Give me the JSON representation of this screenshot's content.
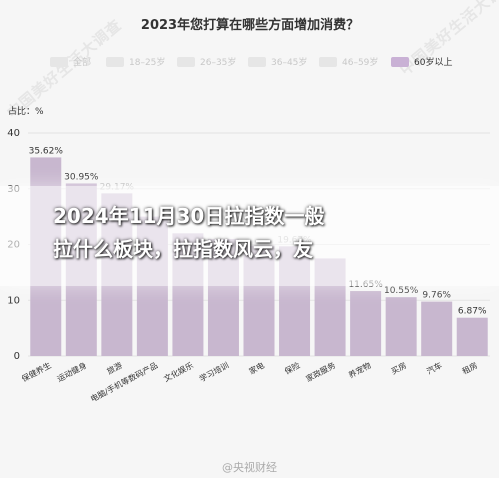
{
  "watermark": "中国美好生活大调查",
  "chart_data": {
    "type": "bar",
    "title": "2023年您打算在哪些方面增加消费？",
    "legend": [
      "全部",
      "18–25岁",
      "26–35岁",
      "36–45岁",
      "46–59岁",
      "60岁以上"
    ],
    "active_legend": "60岁以上",
    "y_unit_label": "占比：%",
    "ylim": [
      0,
      40
    ],
    "yticks": [
      0,
      10,
      20,
      30,
      40
    ],
    "grid": true,
    "categories": [
      "保健养生",
      "运动健身",
      "旅游",
      "电脑/手机等数码产品",
      "文化娱乐",
      "学习培训",
      "家电",
      "保险",
      "家政服务",
      "养宠物",
      "买房",
      "汽车",
      "租房"
    ],
    "series": [
      {
        "name": "60岁以上",
        "values": [
          35.62,
          30.95,
          29.17,
          25.0,
          22.0,
          21.0,
          19.8,
          19.67,
          17.5,
          11.65,
          10.55,
          9.76,
          6.87
        ]
      }
    ],
    "value_labels": [
      "35.62%",
      "30.95%",
      "29.17%",
      "",
      "",
      "",
      "",
      "19.67%",
      "",
      "11.65%",
      "10.55%",
      "9.76%",
      "6.87%"
    ],
    "colors": {
      "bar": "#c8b7cf",
      "legend_active": "#c9b1d5",
      "legend_inactive": "#e6e6e6"
    }
  },
  "overlay": {
    "title": "2024年11月30日拉指数一般\n拉什么板块，拉指数风云，友"
  },
  "footer": {
    "source": "@央视财经"
  }
}
